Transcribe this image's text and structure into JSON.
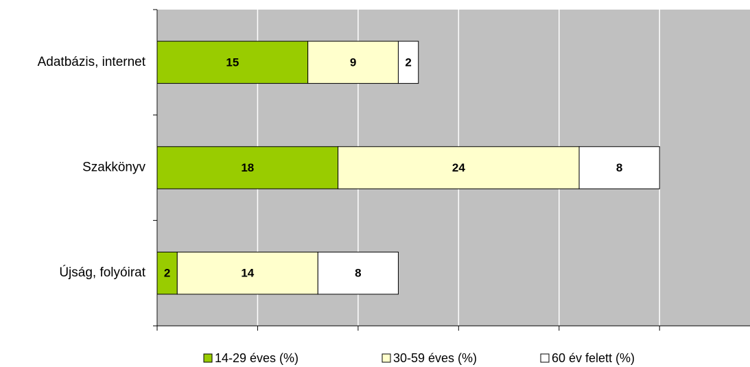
{
  "chart_data": {
    "type": "stacked-barh",
    "categories": [
      "Adatbázis, internet",
      "Szakkönyv",
      "Újság, folyóirat"
    ],
    "series": [
      {
        "name": "14-29 éves (%)",
        "color": "#99cc00",
        "values": [
          15,
          18,
          2
        ]
      },
      {
        "name": "30-59 éves (%)",
        "color": "#ffffcc",
        "values": [
          9,
          24,
          14
        ]
      },
      {
        "name": "60 év felett (%)",
        "color": "#ffffff",
        "values": [
          2,
          8,
          8
        ]
      }
    ],
    "xlim": [
      0,
      59
    ],
    "xticks": [
      0,
      10,
      20,
      30,
      40,
      50
    ],
    "grid": true,
    "plot_background": "#c0c0c0",
    "legend": "bottom"
  }
}
